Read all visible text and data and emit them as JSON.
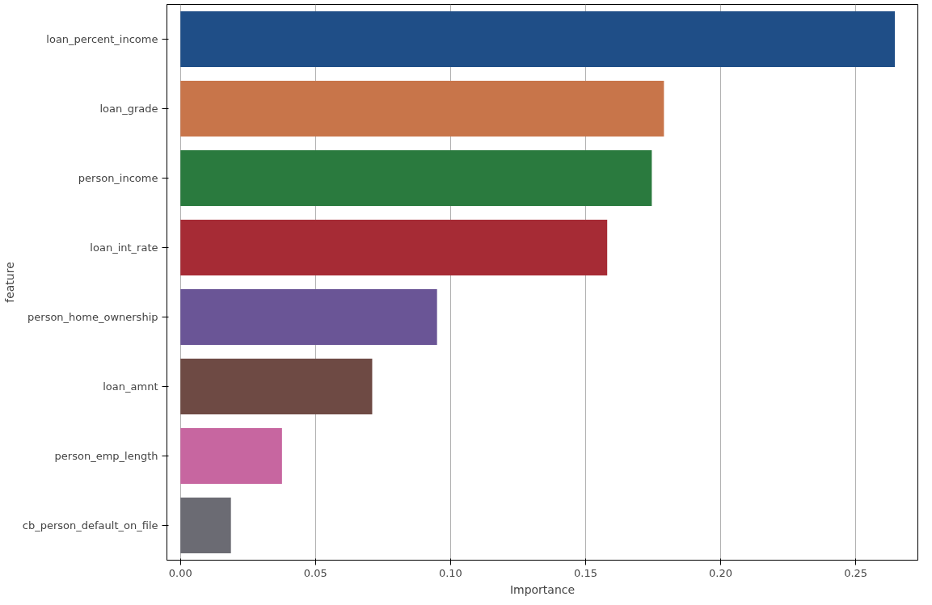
{
  "chart_data": {
    "type": "bar",
    "orientation": "horizontal",
    "xlabel": "Importance",
    "ylabel": "feature",
    "categories": [
      "loan_percent_income",
      "loan_grade",
      "person_income",
      "loan_int_rate",
      "person_home_ownership",
      "loan_amnt",
      "person_emp_length",
      "cb_person_default_on_file"
    ],
    "values": [
      0.2645,
      0.179,
      0.1745,
      0.158,
      0.095,
      0.071,
      0.0376,
      0.0187
    ],
    "colors": [
      "#1f4e87",
      "#c8754a",
      "#2a7a3e",
      "#a62b35",
      "#6a5596",
      "#6e4a44",
      "#c766a0",
      "#6b6b73"
    ],
    "xlim": [
      -0.005,
      0.273
    ],
    "xticks": [
      {
        "value": 0,
        "label": "0.00"
      },
      {
        "value": 0.05,
        "label": "0.05"
      },
      {
        "value": 0.1,
        "label": "0.10"
      },
      {
        "value": 0.15,
        "label": "0.15"
      },
      {
        "value": 0.2,
        "label": "0.20"
      },
      {
        "value": 0.25,
        "label": "0.25"
      }
    ],
    "grid": "x"
  }
}
